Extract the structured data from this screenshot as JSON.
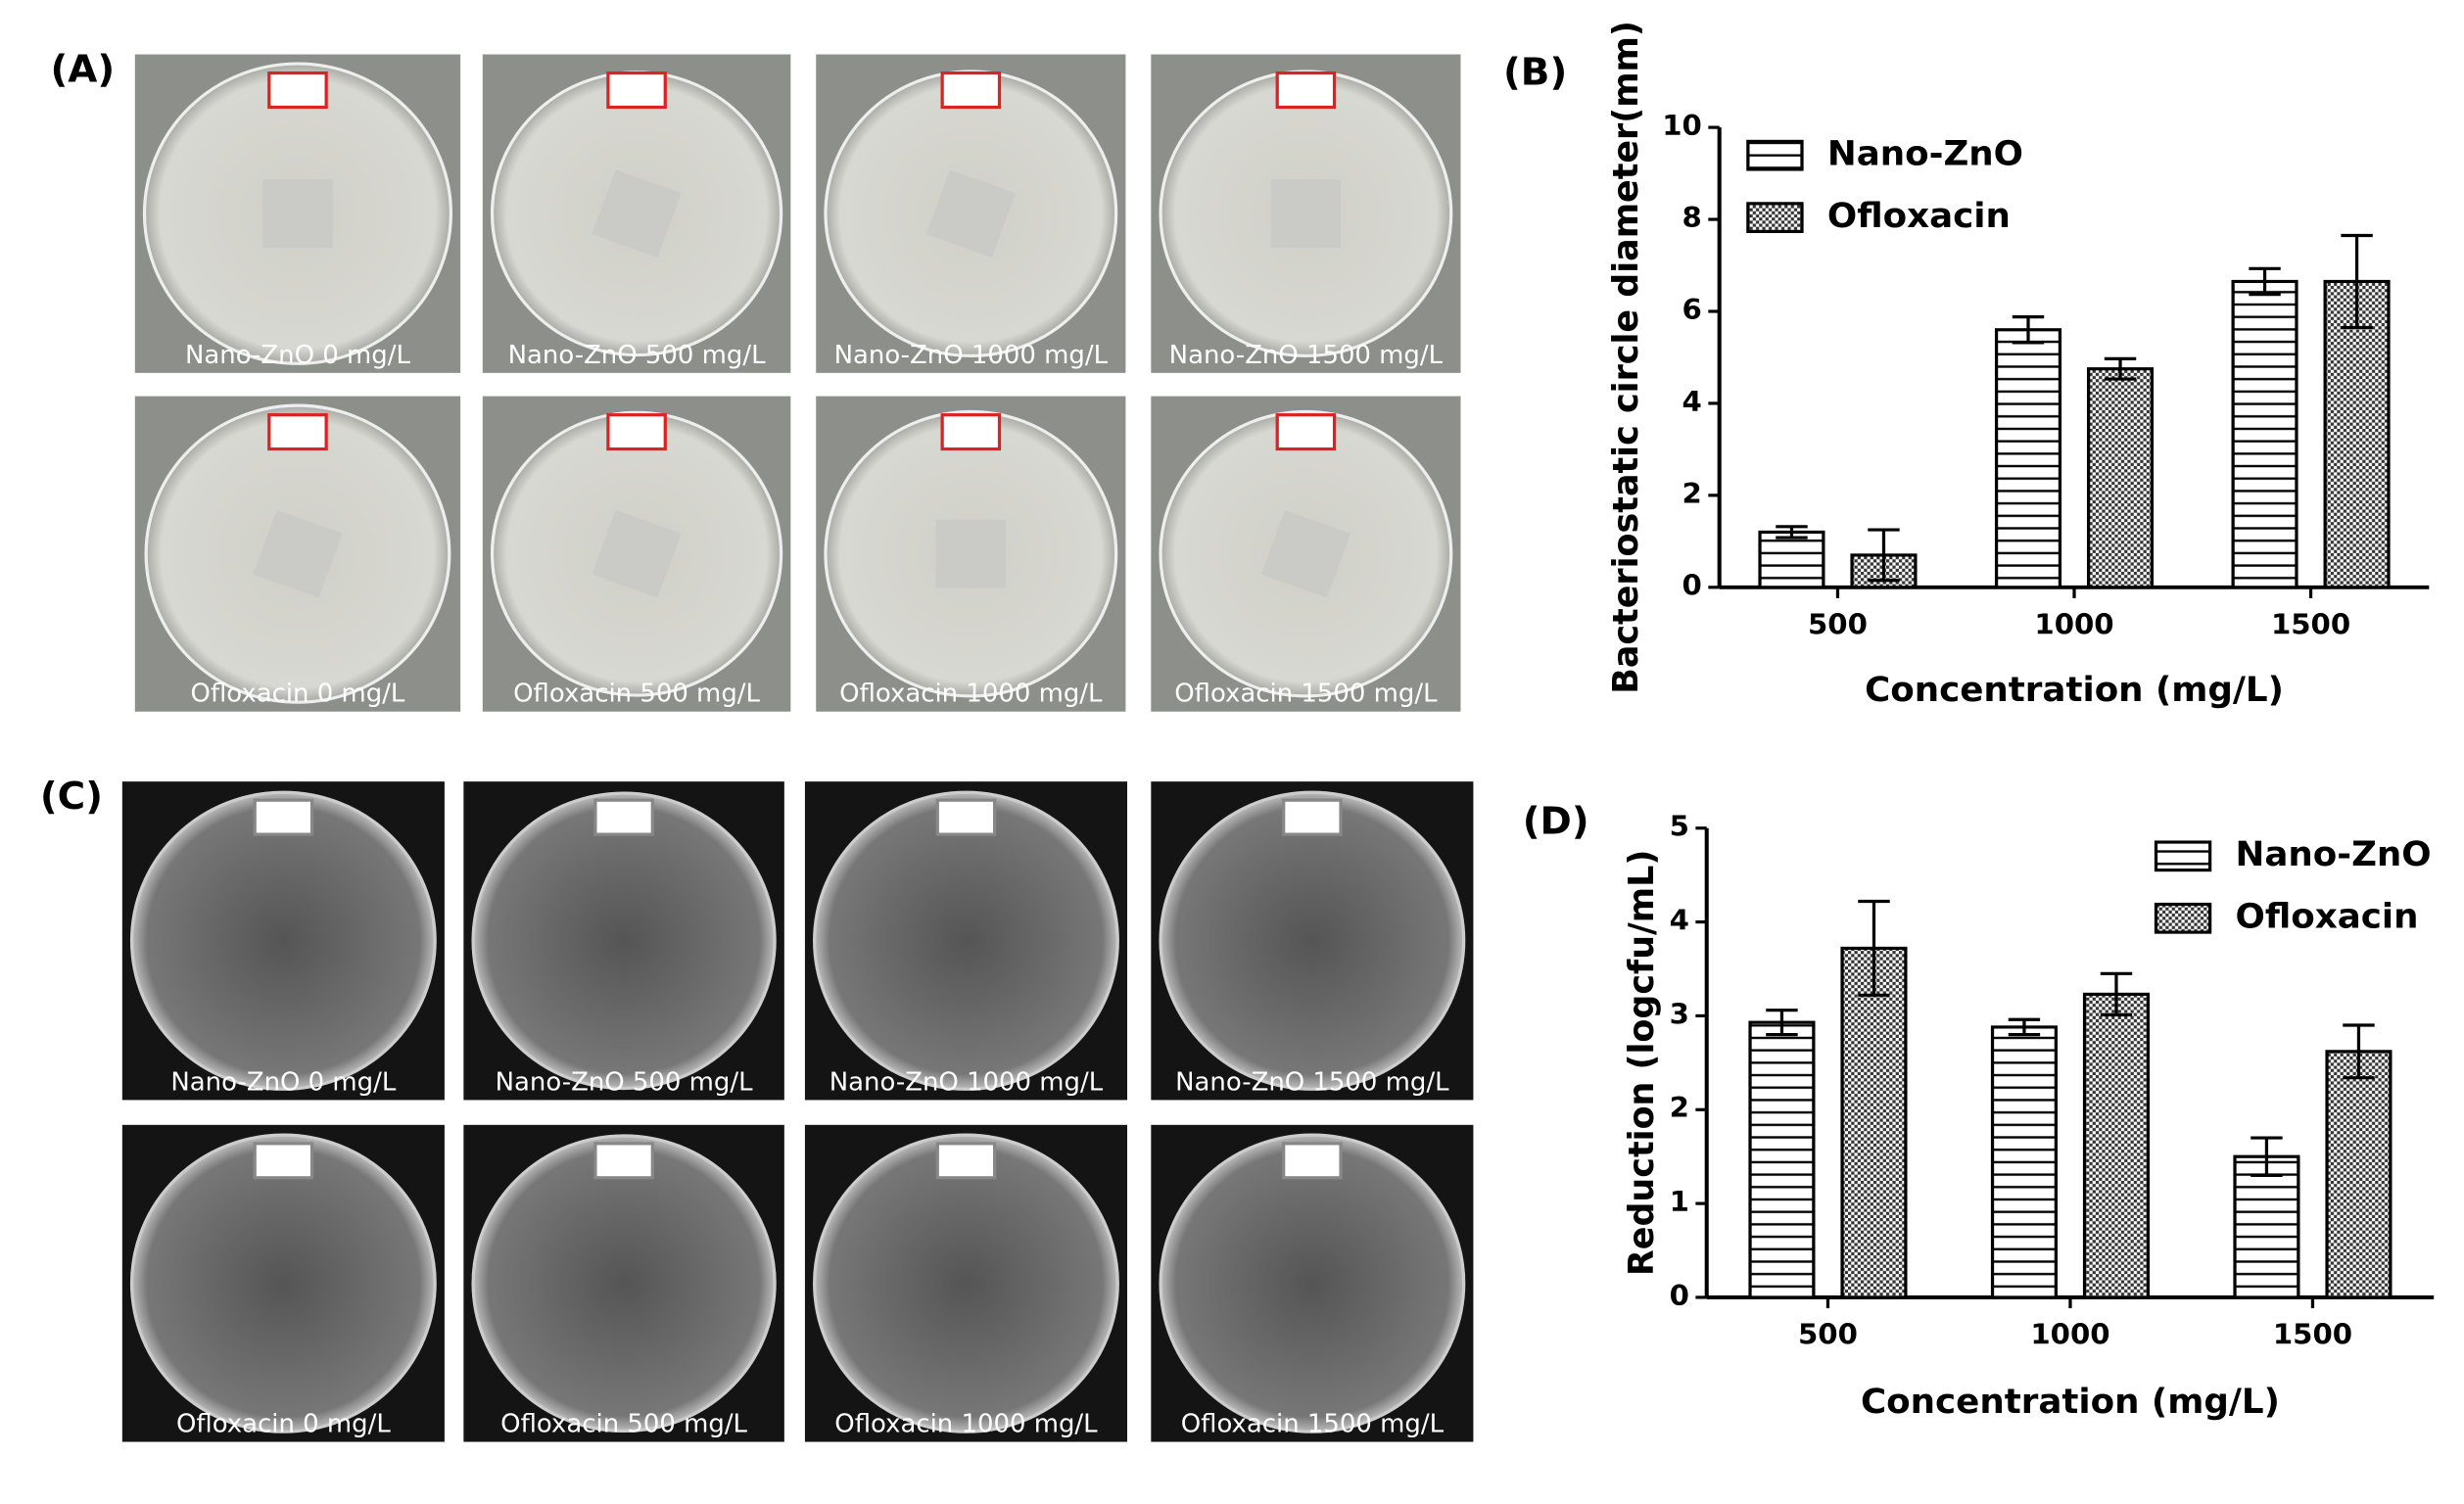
{
  "photos": [
    {
      "panel": "(A)",
      "style": "light",
      "plates": [
        "Nano-ZnO 0 mg/L",
        "Nano-ZnO 500 mg/L",
        "Nano-ZnO 1000 mg/L",
        "Nano-ZnO 1500 mg/L",
        "Ofloxacin 0 mg/L",
        "Ofloxacin 500 mg/L",
        "Ofloxacin 1000 mg/L",
        "Ofloxacin 1500 mg/L"
      ]
    },
    {
      "panel": "(C)",
      "style": "dark",
      "plates": [
        "Nano-ZnO 0 mg/L",
        "Nano-ZnO 500 mg/L",
        "Nano-ZnO 1000 mg/L",
        "Nano-ZnO 1500 mg/L",
        "Ofloxacin 0 mg/L",
        "Ofloxacin 500 mg/L",
        "Ofloxacin 1000 mg/L",
        "Ofloxacin 1500 mg/L"
      ]
    }
  ],
  "chart_data": [
    {
      "type": "bar",
      "panel": "(B)",
      "y_label": "Bacteriostatic circle diameter(mm)",
      "x_label": "Concentration (mg/L)",
      "categories": [
        "500",
        "1000",
        "1500"
      ],
      "legend": "upper left",
      "series": [
        {
          "name": "Nano-ZnO",
          "color": "#000000",
          "pattern": "horizontal",
          "values": [
            1.2,
            5.6,
            6.65
          ],
          "errors": [
            0.12,
            0.28,
            0.28
          ]
        },
        {
          "name": "Ofloxacin",
          "color": "#000000",
          "pattern": "checker",
          "values": [
            0.7,
            4.75,
            6.65
          ],
          "errors": [
            0.55,
            0.22,
            1.0
          ]
        }
      ],
      "ylim": [
        0,
        10
      ],
      "yticks": [
        0,
        2,
        4,
        6,
        8,
        10
      ]
    },
    {
      "type": "bar",
      "panel": "(D)",
      "y_label": "Reduction (logcfu/mL)",
      "x_label": "Concentration (mg/L)",
      "categories": [
        "500",
        "1000",
        "1500"
      ],
      "legend": "upper right",
      "series": [
        {
          "name": "Nano-ZnO",
          "color": "#000000",
          "pattern": "horizontal",
          "values": [
            2.93,
            2.88,
            1.5
          ],
          "errors": [
            0.13,
            0.08,
            0.2
          ]
        },
        {
          "name": "Ofloxacin",
          "color": "#000000",
          "pattern": "checker",
          "values": [
            3.72,
            3.23,
            2.62
          ],
          "errors": [
            0.5,
            0.22,
            0.28
          ]
        }
      ],
      "ylim": [
        0,
        5
      ],
      "yticks": [
        0,
        1,
        2,
        3,
        4,
        5
      ]
    }
  ]
}
